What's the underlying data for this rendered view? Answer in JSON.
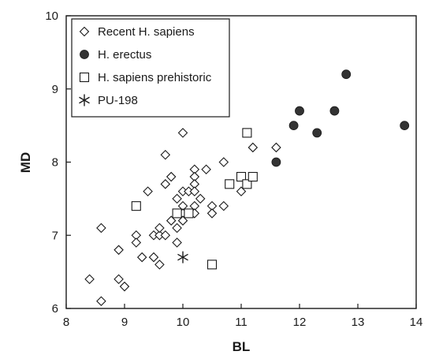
{
  "chart_data": {
    "type": "scatter",
    "xlabel": "BL",
    "ylabel": "MD",
    "xlim": [
      8,
      14
    ],
    "ylim": [
      6,
      10
    ],
    "x_ticks": [
      "8",
      "9",
      "10",
      "11",
      "12",
      "13",
      "14"
    ],
    "y_ticks": [
      "6",
      "7",
      "8",
      "9",
      "10"
    ],
    "grid": false,
    "legend_position": "top-left",
    "series": [
      {
        "name": "Recent H. sapiens",
        "marker": "diamond-open",
        "points": [
          [
            8.4,
            6.4
          ],
          [
            8.6,
            6.1
          ],
          [
            8.6,
            7.1
          ],
          [
            8.9,
            6.8
          ],
          [
            8.9,
            6.4
          ],
          [
            9.0,
            6.3
          ],
          [
            9.2,
            7.0
          ],
          [
            9.2,
            6.9
          ],
          [
            9.3,
            6.7
          ],
          [
            9.4,
            7.6
          ],
          [
            9.5,
            7.0
          ],
          [
            9.5,
            6.7
          ],
          [
            9.6,
            7.0
          ],
          [
            9.6,
            7.1
          ],
          [
            9.6,
            6.6
          ],
          [
            9.7,
            7.0
          ],
          [
            9.7,
            7.7
          ],
          [
            9.7,
            8.1
          ],
          [
            9.8,
            7.8
          ],
          [
            9.8,
            7.2
          ],
          [
            9.9,
            7.5
          ],
          [
            9.9,
            7.1
          ],
          [
            9.9,
            6.9
          ],
          [
            10.0,
            7.6
          ],
          [
            10.0,
            7.4
          ],
          [
            10.0,
            7.3
          ],
          [
            10.0,
            7.2
          ],
          [
            10.0,
            8.4
          ],
          [
            10.1,
            7.6
          ],
          [
            10.2,
            7.9
          ],
          [
            10.2,
            7.8
          ],
          [
            10.2,
            7.7
          ],
          [
            10.2,
            7.6
          ],
          [
            10.2,
            7.4
          ],
          [
            10.2,
            7.3
          ],
          [
            10.3,
            7.5
          ],
          [
            10.4,
            7.9
          ],
          [
            10.5,
            7.4
          ],
          [
            10.5,
            7.3
          ],
          [
            10.7,
            8.0
          ],
          [
            10.7,
            7.4
          ],
          [
            11.0,
            7.6
          ],
          [
            11.2,
            8.2
          ],
          [
            11.6,
            8.2
          ]
        ]
      },
      {
        "name": "H. erectus",
        "marker": "circle-filled",
        "points": [
          [
            11.6,
            8.0
          ],
          [
            11.9,
            8.5
          ],
          [
            12.0,
            8.7
          ],
          [
            12.3,
            8.4
          ],
          [
            12.6,
            8.7
          ],
          [
            12.8,
            9.2
          ],
          [
            13.8,
            8.5
          ]
        ]
      },
      {
        "name": "H. sapiens prehistoric",
        "marker": "square-open",
        "points": [
          [
            9.2,
            7.4
          ],
          [
            9.9,
            7.3
          ],
          [
            10.1,
            7.3
          ],
          [
            10.5,
            6.6
          ],
          [
            10.8,
            7.7
          ],
          [
            11.0,
            7.8
          ],
          [
            11.1,
            7.7
          ],
          [
            11.2,
            7.8
          ],
          [
            11.1,
            8.4
          ]
        ]
      },
      {
        "name": "PU-198",
        "marker": "asterisk",
        "points": [
          [
            10.0,
            6.7
          ]
        ]
      }
    ]
  }
}
